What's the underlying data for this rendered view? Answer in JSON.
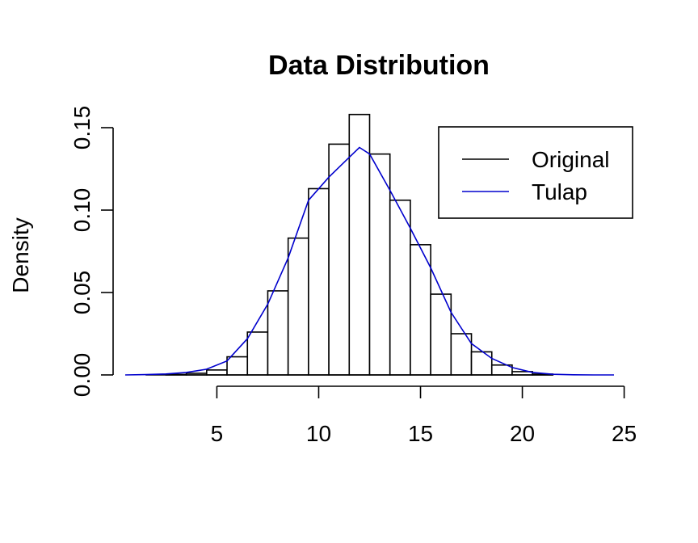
{
  "chart_data": {
    "type": "bar",
    "title": "Data Distribution",
    "xlabel": "",
    "ylabel": "Density",
    "xlim": [
      0.5,
      24.5
    ],
    "ylim": [
      0,
      0.15
    ],
    "x_ticks": [
      5,
      10,
      15,
      20,
      25
    ],
    "x_tick_labels": [
      "5",
      "10",
      "15",
      "20",
      "25"
    ],
    "y_ticks": [
      0.0,
      0.05,
      0.1,
      0.15
    ],
    "y_tick_labels": [
      "0.00",
      "0.05",
      "0.10",
      "0.15"
    ],
    "bins": [
      {
        "start": 1.5,
        "end": 2.5,
        "density": 0.0
      },
      {
        "start": 2.5,
        "end": 3.5,
        "density": 0.0003
      },
      {
        "start": 3.5,
        "end": 4.5,
        "density": 0.001
      },
      {
        "start": 4.5,
        "end": 5.5,
        "density": 0.003
      },
      {
        "start": 5.5,
        "end": 6.5,
        "density": 0.011
      },
      {
        "start": 6.5,
        "end": 7.5,
        "density": 0.026
      },
      {
        "start": 7.5,
        "end": 8.5,
        "density": 0.051
      },
      {
        "start": 8.5,
        "end": 9.5,
        "density": 0.083
      },
      {
        "start": 9.5,
        "end": 10.5,
        "density": 0.113
      },
      {
        "start": 10.5,
        "end": 11.5,
        "density": 0.14
      },
      {
        "start": 11.5,
        "end": 12.5,
        "density": 0.158
      },
      {
        "start": 12.5,
        "end": 13.5,
        "density": 0.134
      },
      {
        "start": 13.5,
        "end": 14.5,
        "density": 0.106
      },
      {
        "start": 14.5,
        "end": 15.5,
        "density": 0.079
      },
      {
        "start": 15.5,
        "end": 16.5,
        "density": 0.049
      },
      {
        "start": 16.5,
        "end": 17.5,
        "density": 0.025
      },
      {
        "start": 17.5,
        "end": 18.5,
        "density": 0.014
      },
      {
        "start": 18.5,
        "end": 19.5,
        "density": 0.006
      },
      {
        "start": 19.5,
        "end": 20.5,
        "density": 0.002
      },
      {
        "start": 20.5,
        "end": 21.5,
        "density": 0.0005
      }
    ],
    "series": [
      {
        "name": "Tulap",
        "color": "#0000cd",
        "x": [
          0.5,
          1.5,
          2.5,
          3.5,
          4.5,
          5.5,
          6.5,
          7.5,
          8.5,
          9.5,
          10.5,
          11.5,
          12.0,
          12.5,
          13.5,
          14.5,
          15.5,
          16.5,
          17.5,
          18.5,
          19.5,
          20.5,
          21.5,
          22.5,
          23.5,
          24.5
        ],
        "y": [
          0.0,
          0.0002,
          0.0006,
          0.0015,
          0.0035,
          0.0085,
          0.022,
          0.043,
          0.071,
          0.106,
          0.12,
          0.132,
          0.138,
          0.134,
          0.112,
          0.089,
          0.065,
          0.038,
          0.019,
          0.01,
          0.0045,
          0.0015,
          0.0004,
          0.0001,
          0.0,
          0.0
        ]
      }
    ],
    "legend": {
      "position": "top-right",
      "entries": [
        {
          "label": "Original",
          "color": "#000000"
        },
        {
          "label": "Tulap",
          "color": "#0000cd"
        }
      ]
    },
    "grid": false
  }
}
